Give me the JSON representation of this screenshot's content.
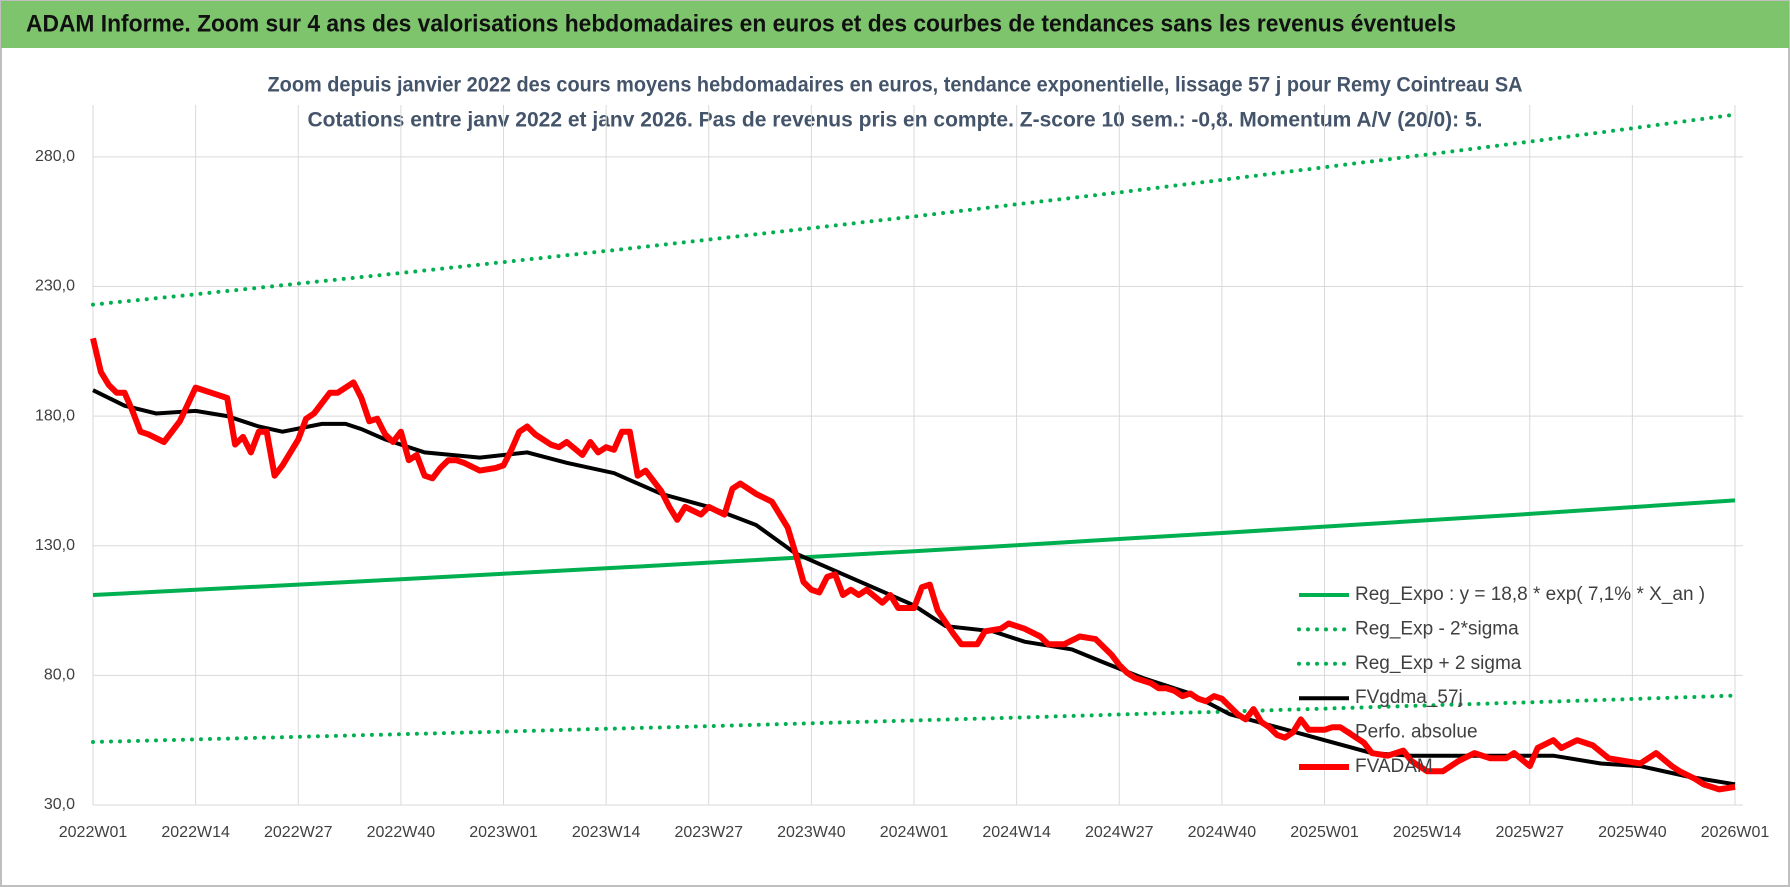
{
  "header": {
    "title": "ADAM Informe. Zoom sur 4 ans des valorisations hebdomadaires en euros et des courbes de tendances sans les revenus éventuels"
  },
  "chart_data": {
    "type": "line",
    "title": "Zoom depuis janvier 2022 des cours moyens hebdomadaires en euros, tendance exponentielle, lissage 57 j pour Remy Cointreau SA",
    "subtitle": "Cotations entre janv 2022 et janv 2026. Pas de revenus pris en compte. Z-score 10 sem.: -0,8. Momentum A/V (20/0): 5.",
    "xlim": [
      0,
      208
    ],
    "xticks": [
      {
        "value": 0,
        "label": "2022W01"
      },
      {
        "value": 13,
        "label": "2022W14"
      },
      {
        "value": 26,
        "label": "2022W27"
      },
      {
        "value": 39,
        "label": "2022W40"
      },
      {
        "value": 52,
        "label": "2023W01"
      },
      {
        "value": 65,
        "label": "2023W14"
      },
      {
        "value": 78,
        "label": "2023W27"
      },
      {
        "value": 91,
        "label": "2023W40"
      },
      {
        "value": 104,
        "label": "2024W01"
      },
      {
        "value": 117,
        "label": "2024W14"
      },
      {
        "value": 130,
        "label": "2024W27"
      },
      {
        "value": 143,
        "label": "2024W40"
      },
      {
        "value": 156,
        "label": "2025W01"
      },
      {
        "value": 169,
        "label": "2025W14"
      },
      {
        "value": 182,
        "label": "2025W27"
      },
      {
        "value": 195,
        "label": "2025W40"
      },
      {
        "value": 208,
        "label": "2026W01"
      }
    ],
    "ylim": [
      30,
      300
    ],
    "yticks": [
      {
        "value": 30,
        "label": "30,0"
      },
      {
        "value": 80,
        "label": "80,0"
      },
      {
        "value": 130,
        "label": "130,0"
      },
      {
        "value": 180,
        "label": "180,0"
      },
      {
        "value": 230,
        "label": "230,0"
      },
      {
        "value": 280,
        "label": "280,0"
      }
    ],
    "grid": true,
    "legend": "right",
    "series": [
      {
        "name": "Reg_Expo : y = 18,8 * exp( 7,1% * X_an )",
        "color": "#00b050",
        "style": "solid",
        "x": [
          0,
          13,
          26,
          39,
          52,
          65,
          78,
          91,
          104,
          117,
          130,
          143,
          156,
          169,
          182,
          195,
          208
        ],
        "values": [
          111.0,
          113.0,
          115.0,
          117.1,
          119.2,
          121.3,
          123.5,
          125.7,
          127.9,
          130.2,
          132.6,
          134.9,
          137.4,
          139.8,
          142.3,
          144.9,
          147.5
        ]
      },
      {
        "name": "Reg_Exp - 2*sigma",
        "color": "#00b050",
        "style": "dotted",
        "x": [
          0,
          13,
          26,
          39,
          52,
          65,
          78,
          91,
          104,
          117,
          130,
          143,
          156,
          169,
          182,
          195,
          208
        ],
        "values": [
          54.3,
          55.3,
          56.3,
          57.3,
          58.3,
          59.4,
          60.4,
          61.5,
          62.6,
          63.7,
          64.9,
          66.0,
          67.2,
          68.4,
          69.6,
          70.9,
          72.2
        ]
      },
      {
        "name": "Reg_Exp + 2 sigma",
        "color": "#00b050",
        "style": "dotted",
        "x": [
          0,
          13,
          26,
          39,
          52,
          65,
          78,
          91,
          104,
          117,
          130,
          143,
          156,
          169,
          182,
          195,
          208
        ],
        "values": [
          223.0,
          227.0,
          231.1,
          235.2,
          239.4,
          243.7,
          248.1,
          252.5,
          257.0,
          261.7,
          266.3,
          271.1,
          276.0,
          280.9,
          285.9,
          291.0,
          296.3
        ]
      },
      {
        "name": "FVgdma_57j",
        "color": "#000000",
        "style": "solid",
        "x": [
          0,
          4,
          8,
          13,
          17,
          21,
          24,
          29,
          32,
          34,
          37,
          42,
          49,
          55,
          60,
          66,
          72,
          78,
          84,
          89,
          92,
          98,
          104,
          108,
          114,
          118,
          124,
          128,
          133,
          139,
          144,
          150,
          156,
          162,
          167,
          173,
          179,
          185,
          191,
          196,
          202,
          208
        ],
        "values": [
          190,
          184,
          181,
          182,
          180,
          176,
          174,
          177,
          177,
          175,
          171,
          166,
          164,
          166,
          162,
          158,
          150,
          145,
          138,
          127,
          123,
          115,
          107,
          99,
          97,
          93,
          90,
          85,
          79,
          73,
          65,
          60,
          55,
          50,
          49,
          49,
          49,
          49,
          46,
          45,
          41,
          38
        ]
      },
      {
        "name": "Perfo. absolue",
        "color": "#ff0000",
        "style": "marker",
        "x": [],
        "values": []
      },
      {
        "name": "FVADAM",
        "color": "#ff0000",
        "style": "thick",
        "x": [
          0,
          1,
          2,
          3,
          4,
          5,
          6,
          7,
          9,
          11,
          13,
          15,
          17,
          18,
          19,
          20,
          21,
          22,
          23,
          24,
          26,
          27,
          28,
          30,
          31,
          33,
          34,
          35,
          36,
          37,
          38,
          39,
          40,
          41,
          42,
          43,
          44,
          45,
          46,
          47,
          49,
          51,
          52,
          53,
          54,
          55,
          56,
          58,
          59,
          60,
          62,
          63,
          64,
          65,
          66,
          67,
          68,
          69,
          70,
          71,
          72,
          73,
          74,
          75,
          77,
          78,
          80,
          81,
          82,
          84,
          86,
          88,
          89,
          90,
          91,
          92,
          93,
          94,
          95,
          96,
          97,
          98,
          100,
          101,
          102,
          104,
          105,
          106,
          107,
          109,
          110,
          112,
          113,
          115,
          116,
          118,
          120,
          121,
          123,
          125,
          127,
          128,
          129,
          130,
          131,
          132,
          133,
          134,
          135,
          136,
          137,
          138,
          139,
          140,
          141,
          142,
          143,
          144,
          145,
          146,
          147,
          148,
          149,
          150,
          151,
          152,
          153,
          154,
          155,
          156,
          157,
          158,
          159,
          160,
          161,
          162,
          164,
          166,
          167,
          169,
          171,
          173,
          175,
          177,
          179,
          180,
          182,
          183,
          185,
          186,
          188,
          190,
          192,
          194,
          196,
          198,
          200,
          201,
          203,
          204,
          206,
          208
        ],
        "values": [
          210,
          197,
          192,
          189,
          189,
          182,
          174,
          173,
          170,
          178,
          191,
          189,
          187,
          169,
          172,
          166,
          174,
          174,
          157,
          161,
          171,
          179,
          181,
          189,
          189,
          193,
          187,
          178,
          179,
          173,
          170,
          174,
          163,
          165,
          157,
          156,
          160,
          163,
          163,
          162,
          159,
          160,
          161,
          167,
          174,
          176,
          173,
          169,
          168,
          170,
          165,
          170,
          166,
          168,
          167,
          174,
          174,
          157,
          159,
          155,
          151,
          145,
          140,
          145,
          142,
          145,
          142,
          152,
          154,
          150,
          147,
          137,
          127,
          116,
          113,
          112,
          118,
          119,
          111,
          113,
          111,
          113,
          108,
          111,
          106,
          106,
          114,
          115,
          105,
          96,
          92,
          92,
          97,
          98,
          100,
          98,
          95,
          92,
          92,
          95,
          94,
          91,
          88,
          84,
          81,
          79,
          78,
          77,
          75,
          75,
          74,
          72,
          73,
          71,
          70,
          72,
          71,
          68,
          65,
          63,
          67,
          62,
          60,
          57,
          56,
          58,
          63,
          59,
          59,
          59,
          60,
          60,
          58,
          56,
          54,
          50,
          49,
          51,
          47,
          43,
          43,
          47,
          50,
          48,
          48,
          50,
          45,
          52,
          55,
          52,
          55,
          53,
          48,
          47,
          46,
          50,
          45,
          43,
          40,
          38,
          36,
          37
        ]
      }
    ]
  }
}
